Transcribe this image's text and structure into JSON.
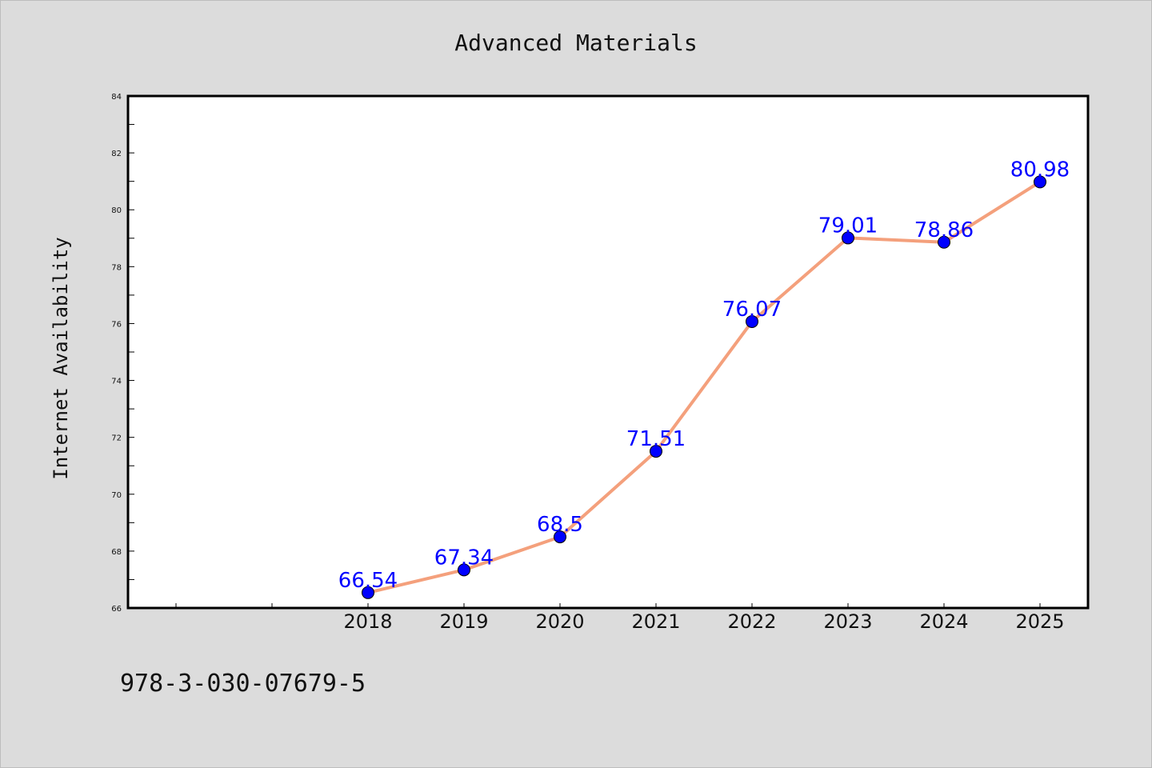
{
  "chart_data": {
    "type": "line",
    "title": "Advanced Materials",
    "xlabel": "",
    "ylabel": "Internet Availability",
    "categories": [
      "2018",
      "2019",
      "2020",
      "2021",
      "2022",
      "2023",
      "2024",
      "2025"
    ],
    "series": [
      {
        "values": [
          66.54,
          67.34,
          68.5,
          71.51,
          76.07,
          79.01,
          78.86,
          80.98
        ],
        "line_color": "#f4a07c",
        "marker_color": "#0000ff"
      }
    ],
    "data_labels": [
      "66.54",
      "67.34",
      "68.5",
      "71.51",
      "76.07",
      "79.01",
      "78.86",
      "80.98"
    ],
    "ylim": [
      66,
      84
    ],
    "yticks": [
      66,
      68,
      70,
      72,
      74,
      76,
      78,
      80,
      82,
      84
    ],
    "grid": false,
    "legend": "none"
  },
  "footer_text": "978-3-030-07679-5",
  "colors": {
    "background": "#dcdcdc",
    "plot_background": "#ffffff",
    "line": "#f4a07c",
    "marker": "#0000ff",
    "label": "#0000ff"
  }
}
